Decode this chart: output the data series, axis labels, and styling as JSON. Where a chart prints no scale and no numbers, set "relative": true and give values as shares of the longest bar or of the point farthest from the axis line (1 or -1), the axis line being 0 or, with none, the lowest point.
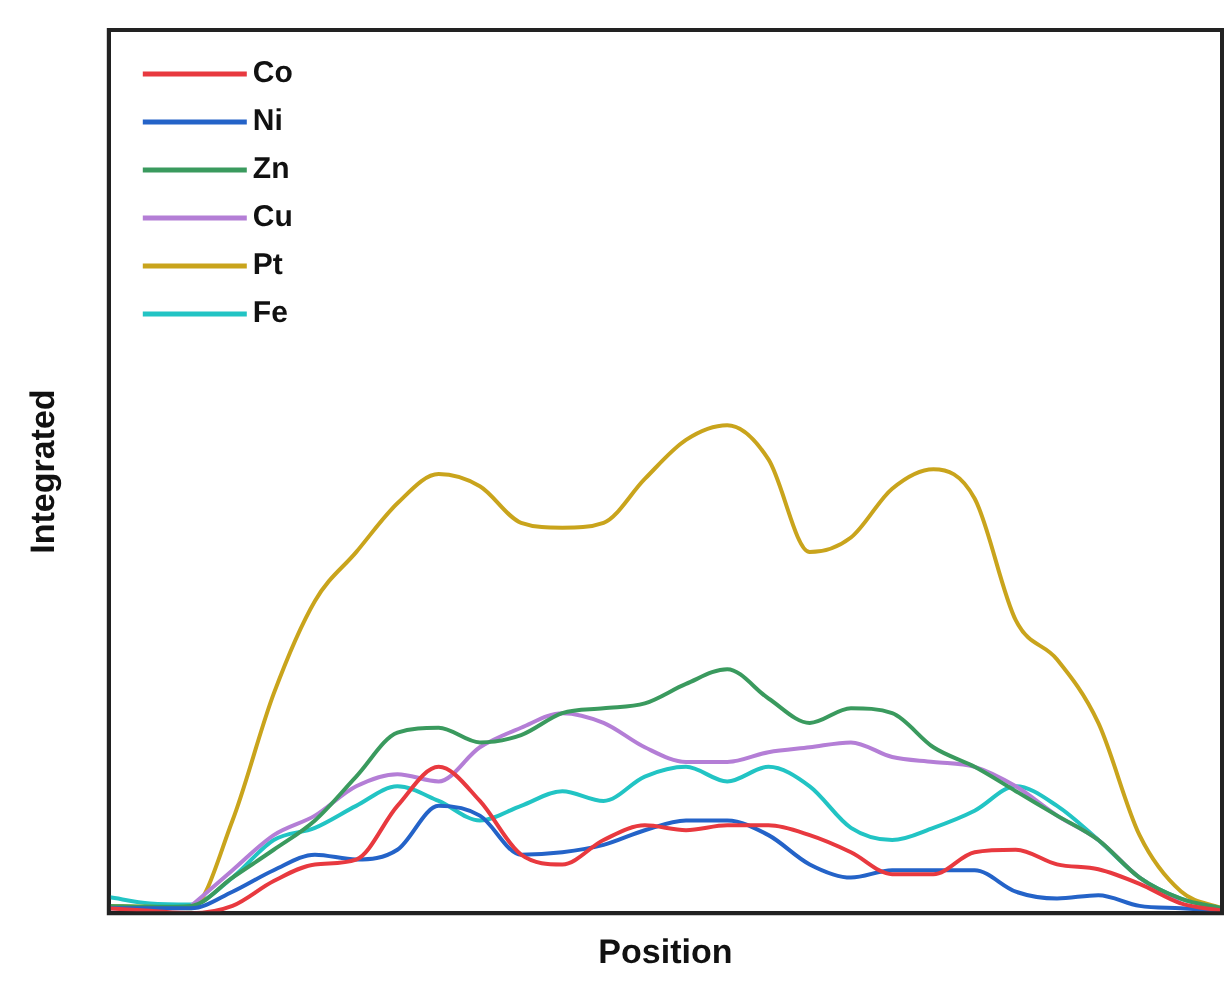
{
  "chart_data": {
    "type": "line",
    "relative": true,
    "xlabel": "Position",
    "ylabel": "Integrated",
    "legend": "top left",
    "tick_labels": false,
    "grid": false,
    "marker": "none",
    "line_style": "solid",
    "categories": [
      null,
      null,
      null,
      null,
      null,
      null,
      null,
      null,
      null,
      null,
      null,
      null,
      null,
      null,
      null,
      null,
      null,
      null,
      null,
      null,
      null,
      null,
      null,
      null,
      null,
      null,
      null,
      null
    ],
    "series": [
      {
        "name": "Co",
        "color": "#e8393f",
        "values": [
          0.01,
          0.005,
          0,
          0.015,
          0.066,
          0.1,
          0.11,
          0.22,
          0.3,
          0.23,
          0.12,
          0.1,
          0.15,
          0.18,
          0.17,
          0.18,
          0.18,
          0.16,
          0.125,
          0.08,
          0.08,
          0.125,
          0.13,
          0.1,
          0.09,
          0.06,
          0.02,
          0.005
        ]
      },
      {
        "name": "Ni",
        "color": "#2463c8",
        "values": [
          0.01,
          0.01,
          0.01,
          0.044,
          0.088,
          0.12,
          0.11,
          0.13,
          0.22,
          0.2,
          0.12,
          0.125,
          0.14,
          0.17,
          0.19,
          0.19,
          0.16,
          0.1,
          0.073,
          0.088,
          0.088,
          0.088,
          0.044,
          0.03,
          0.037,
          0.015,
          0.01,
          0.005
        ]
      },
      {
        "name": "Zn",
        "color": "#3a9a5e",
        "values": [
          0.015,
          0.013,
          0.015,
          0.073,
          0.13,
          0.19,
          0.28,
          0.37,
          0.38,
          0.35,
          0.365,
          0.41,
          0.42,
          0.43,
          0.47,
          0.5,
          0.44,
          0.39,
          0.42,
          0.41,
          0.34,
          0.3,
          0.25,
          0.2,
          0.15,
          0.073,
          0.03,
          0.01
        ]
      },
      {
        "name": "Cu",
        "color": "#b47ed6",
        "values": [
          null,
          null,
          0.015,
          0.088,
          0.16,
          0.2,
          0.26,
          0.285,
          0.27,
          0.34,
          0.38,
          0.41,
          0.39,
          0.34,
          0.31,
          0.31,
          0.33,
          0.34,
          0.35,
          0.32,
          0.31,
          0.3,
          0.26,
          0.2,
          0.15,
          0.073,
          0.02,
          null
        ]
      },
      {
        "name": "Pt",
        "color": "#c9a41c",
        "values": [
          0.015,
          0.013,
          0.01,
          0.19,
          0.45,
          0.64,
          0.74,
          0.84,
          0.9,
          0.875,
          0.8,
          0.79,
          0.8,
          0.89,
          0.97,
          1,
          0.93,
          0.74,
          0.77,
          0.87,
          0.91,
          0.85,
          0.6,
          0.52,
          0.39,
          0.16,
          0.045,
          0.01
        ]
      },
      {
        "name": "Fe",
        "color": "#22c4c4",
        "values": [
          0.033,
          0.02,
          0.018,
          0.073,
          0.15,
          0.175,
          0.22,
          0.26,
          0.23,
          0.19,
          0.22,
          0.25,
          0.23,
          0.28,
          0.3,
          0.27,
          0.3,
          0.26,
          0.175,
          0.15,
          0.175,
          0.21,
          0.26,
          0.22,
          0.15,
          0.073,
          0.03,
          0.01
        ]
      }
    ]
  }
}
